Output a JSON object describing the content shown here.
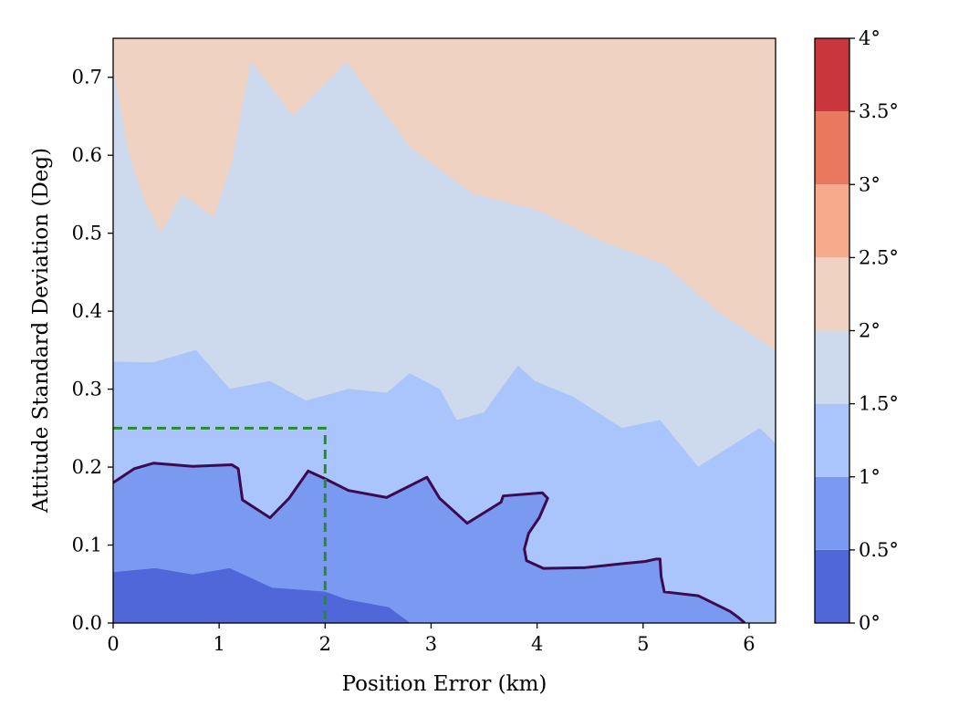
{
  "chart_data": {
    "type": "heatmap",
    "subtype": "filled-contour",
    "xlabel": "Position Error (km)",
    "ylabel": "Attitude Standard Deviation (Deg)",
    "xlim": [
      0,
      6.25
    ],
    "ylim": [
      0,
      0.75
    ],
    "x_ticks": [
      0,
      1,
      2,
      3,
      4,
      5,
      6
    ],
    "x_tick_labels": [
      "0",
      "1",
      "2",
      "3",
      "4",
      "5",
      "6"
    ],
    "y_ticks": [
      0.0,
      0.1,
      0.2,
      0.3,
      0.4,
      0.5,
      0.6,
      0.7
    ],
    "y_tick_labels": [
      "0.0",
      "0.1",
      "0.2",
      "0.3",
      "0.4",
      "0.5",
      "0.6",
      "0.7"
    ],
    "grid": false,
    "colorbar": {
      "range": [
        0,
        4
      ],
      "levels": [
        0,
        0.5,
        1,
        1.5,
        2,
        2.5,
        3,
        3.5,
        4
      ],
      "labels": [
        "0°",
        "0.5°",
        "1°",
        "1.5°",
        "2°",
        "2.5°",
        "3°",
        "3.5°",
        "4°"
      ],
      "colors": [
        "#4f67d8",
        "#7a9af2",
        "#a9c5fc",
        "#cdd9ec",
        "#f0d2c3",
        "#f6ab8d",
        "#e8795e",
        "#c9373c"
      ]
    },
    "contour_bands": [
      {
        "level_range": [
          0,
          0.5
        ],
        "color": "#4f67d8",
        "upper_boundary": {
          "x": [
            0,
            0.4,
            0.75,
            1.1,
            1.5,
            2.0,
            2.2,
            2.6,
            2.8
          ],
          "y": [
            0.065,
            0.07,
            0.062,
            0.07,
            0.045,
            0.04,
            0.03,
            0.02,
            0.0
          ]
        }
      },
      {
        "level_range": [
          0.5,
          1.0
        ],
        "color": "#7a9af2",
        "upper_boundary": {
          "x": [
            0,
            0.2,
            0.38,
            0.75,
            1.12,
            1.18,
            1.22,
            1.48,
            1.66,
            1.84,
            2.0,
            2.22,
            2.58,
            2.96,
            3.08,
            3.34,
            3.66,
            3.68,
            4.05,
            4.1,
            4.02,
            3.92,
            3.88,
            3.9,
            4.06,
            4.45,
            4.8,
            5.02,
            5.12,
            5.16,
            5.17,
            5.2,
            5.52,
            5.82,
            5.9,
            5.96
          ],
          "y": [
            0.18,
            0.198,
            0.205,
            0.201,
            0.203,
            0.198,
            0.158,
            0.135,
            0.16,
            0.195,
            0.185,
            0.17,
            0.161,
            0.187,
            0.16,
            0.128,
            0.155,
            0.163,
            0.167,
            0.16,
            0.135,
            0.115,
            0.095,
            0.08,
            0.07,
            0.071,
            0.076,
            0.079,
            0.082,
            0.082,
            0.06,
            0.04,
            0.035,
            0.015,
            0.007,
            0.0
          ]
        }
      },
      {
        "level_range": [
          1.0,
          1.5
        ],
        "color": "#a9c5fc",
        "upper_boundary": {
          "x": [
            0,
            0.38,
            0.78,
            1.1,
            1.48,
            1.82,
            2.22,
            2.58,
            2.8,
            3.08,
            3.24,
            3.5,
            3.82,
            3.98,
            4.34,
            4.8,
            5.16,
            5.52,
            6.1,
            6.25
          ],
          "y": [
            0.335,
            0.334,
            0.35,
            0.3,
            0.31,
            0.285,
            0.3,
            0.295,
            0.32,
            0.3,
            0.26,
            0.27,
            0.33,
            0.31,
            0.29,
            0.25,
            0.26,
            0.2,
            0.25,
            0.23
          ]
        }
      },
      {
        "level_range": [
          1.5,
          2.0
        ],
        "color": "#cdd9ec",
        "upper_boundary": {
          "x": [
            0,
            0.15,
            0.3,
            0.45,
            0.65,
            0.95,
            1.12,
            1.3,
            1.7,
            2.2,
            2.8,
            3.4,
            4.0,
            4.6,
            5.2,
            5.7,
            6.25
          ],
          "y": [
            0.71,
            0.6,
            0.54,
            0.5,
            0.55,
            0.52,
            0.59,
            0.72,
            0.65,
            0.72,
            0.61,
            0.55,
            0.53,
            0.49,
            0.46,
            0.4,
            0.35
          ]
        }
      },
      {
        "level_range": [
          2.0,
          2.5
        ],
        "color": "#f0d2c3",
        "upper_boundary": {
          "x": [
            0,
            6.25
          ],
          "y": [
            0.75,
            0.75
          ]
        }
      }
    ],
    "threshold_contour": {
      "level": 1.0,
      "color": "#3d0a4f",
      "x": [
        0,
        0.2,
        0.38,
        0.75,
        1.12,
        1.18,
        1.22,
        1.48,
        1.66,
        1.84,
        2.0,
        2.22,
        2.58,
        2.96,
        3.08,
        3.34,
        3.66,
        3.68,
        4.05,
        4.1,
        4.02,
        3.92,
        3.88,
        3.9,
        4.06,
        4.45,
        4.8,
        5.02,
        5.12,
        5.16,
        5.17,
        5.2,
        5.52,
        5.82,
        5.9,
        5.96
      ],
      "y": [
        0.18,
        0.198,
        0.205,
        0.201,
        0.203,
        0.198,
        0.158,
        0.135,
        0.16,
        0.195,
        0.185,
        0.17,
        0.161,
        0.187,
        0.16,
        0.128,
        0.155,
        0.163,
        0.167,
        0.16,
        0.135,
        0.115,
        0.095,
        0.08,
        0.07,
        0.071,
        0.076,
        0.079,
        0.082,
        0.082,
        0.06,
        0.04,
        0.035,
        0.015,
        0.007,
        0.0
      ]
    },
    "requirement_box": {
      "color": "#2a8a2a",
      "style": "dashed",
      "x": [
        0,
        2,
        2
      ],
      "y": [
        0.25,
        0.25,
        0.0
      ]
    }
  }
}
